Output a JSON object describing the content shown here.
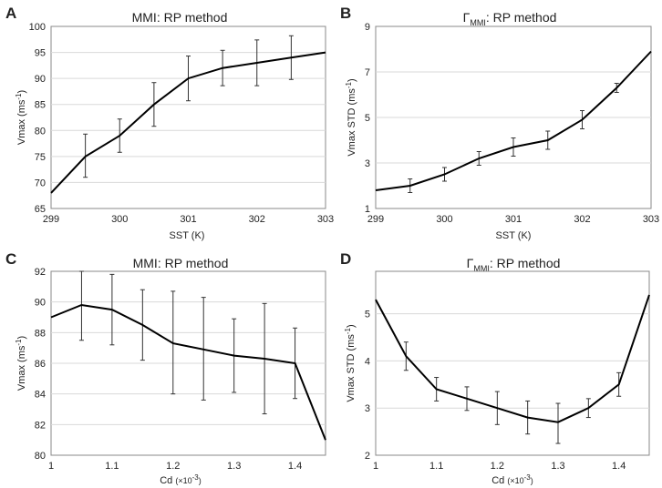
{
  "chart_data": [
    {
      "panel": "A",
      "type": "line",
      "title": "MMI: RP method",
      "xlabel": "SST (K)",
      "ylabel": {
        "main": "Vmax (ms",
        "sup": "-1",
        "end": ")"
      },
      "xlim": [
        299,
        303
      ],
      "ylim": [
        65,
        100
      ],
      "xticks": [
        "299",
        "300",
        "301",
        "302",
        "303"
      ],
      "yticks": [
        "65",
        "70",
        "75",
        "80",
        "85",
        "90",
        "95",
        "100"
      ],
      "x": [
        299,
        299.5,
        300,
        300.5,
        301,
        301.5,
        302,
        302.5,
        303
      ],
      "y": [
        68,
        75,
        79,
        85,
        90,
        92,
        93,
        94,
        95
      ],
      "errors": [
        {
          "x": 299.5,
          "low": 71,
          "high": 79.3
        },
        {
          "x": 300,
          "low": 75.8,
          "high": 82.2
        },
        {
          "x": 300.5,
          "low": 80.8,
          "high": 89.2
        },
        {
          "x": 301,
          "low": 85.7,
          "high": 94.3
        },
        {
          "x": 301.5,
          "low": 88.6,
          "high": 95.4
        },
        {
          "x": 302,
          "low": 88.6,
          "high": 97.4
        },
        {
          "x": 302.5,
          "low": 89.8,
          "high": 98.2
        }
      ]
    },
    {
      "panel": "B",
      "type": "line",
      "title": "Γ",
      "title_sub": "MMI",
      "title_rest": ": RP method",
      "xlabel": "SST (K)",
      "ylabel": {
        "main": "Vmax STD (ms",
        "sup": "-1",
        "end": ")"
      },
      "xlim": [
        299,
        303
      ],
      "ylim": [
        1,
        9
      ],
      "xticks": [
        "299",
        "300",
        "301",
        "302",
        "303"
      ],
      "yticks": [
        "1",
        "3",
        "5",
        "7",
        "9"
      ],
      "x": [
        299,
        299.5,
        300,
        300.5,
        301,
        301.5,
        302,
        302.5,
        303
      ],
      "y": [
        1.8,
        2.0,
        2.5,
        3.2,
        3.7,
        4.0,
        4.9,
        6.3,
        7.9
      ],
      "errors": [
        {
          "x": 299.5,
          "low": 1.7,
          "high": 2.3
        },
        {
          "x": 300,
          "low": 2.2,
          "high": 2.8
        },
        {
          "x": 300.5,
          "low": 2.9,
          "high": 3.5
        },
        {
          "x": 301,
          "low": 3.3,
          "high": 4.1
        },
        {
          "x": 301.5,
          "low": 3.6,
          "high": 4.4
        },
        {
          "x": 302,
          "low": 4.5,
          "high": 5.3
        },
        {
          "x": 302.5,
          "low": 6.1,
          "high": 6.5
        }
      ]
    },
    {
      "panel": "C",
      "type": "line",
      "title": "MMI: RP method",
      "xlabel": {
        "main": "Cd ",
        "paren": "(×10",
        "sup": "-3",
        "end": ")"
      },
      "ylabel": {
        "main": "Vmax (ms",
        "sup": "-1",
        "end": ")"
      },
      "xlim": [
        1.0,
        1.45
      ],
      "ylim": [
        80,
        92
      ],
      "xticks": [
        "1",
        "1.1",
        "1.2",
        "1.3",
        "1.4"
      ],
      "yticks": [
        "80",
        "82",
        "84",
        "86",
        "88",
        "90",
        "92"
      ],
      "x": [
        1.0,
        1.05,
        1.1,
        1.15,
        1.2,
        1.25,
        1.3,
        1.35,
        1.4,
        1.45
      ],
      "y": [
        89.0,
        89.8,
        89.5,
        88.5,
        87.3,
        86.9,
        86.5,
        86.3,
        86.0,
        81.0
      ],
      "errors": [
        {
          "x": 1.05,
          "low": 87.5,
          "high": 92.0
        },
        {
          "x": 1.1,
          "low": 87.2,
          "high": 91.8
        },
        {
          "x": 1.15,
          "low": 86.2,
          "high": 90.8
        },
        {
          "x": 1.2,
          "low": 84.0,
          "high": 90.7
        },
        {
          "x": 1.25,
          "low": 83.6,
          "high": 90.3
        },
        {
          "x": 1.3,
          "low": 84.1,
          "high": 88.9
        },
        {
          "x": 1.35,
          "low": 82.7,
          "high": 89.9
        },
        {
          "x": 1.4,
          "low": 83.7,
          "high": 88.3
        }
      ]
    },
    {
      "panel": "D",
      "type": "line",
      "title": "Γ",
      "title_sub": "MMI",
      "title_rest": ": RP method",
      "xlabel": {
        "main": "Cd ",
        "paren": "(×10",
        "sup": "-3",
        "end": ")"
      },
      "ylabel": {
        "main": "Vmax STD (ms",
        "sup": "-1",
        "end": ")"
      },
      "xlim": [
        1.0,
        1.45
      ],
      "ylim": [
        2,
        5.9
      ],
      "xticks": [
        "1",
        "1.1",
        "1.2",
        "1.3",
        "1.4"
      ],
      "yticks": [
        "2",
        "3",
        "4",
        "5"
      ],
      "x": [
        1.0,
        1.05,
        1.1,
        1.15,
        1.2,
        1.25,
        1.3,
        1.35,
        1.4,
        1.45
      ],
      "y": [
        5.3,
        4.1,
        3.4,
        3.2,
        3.0,
        2.8,
        2.7,
        3.0,
        3.5,
        5.4
      ],
      "errors": [
        {
          "x": 1.05,
          "low": 3.8,
          "high": 4.4
        },
        {
          "x": 1.1,
          "low": 3.15,
          "high": 3.65
        },
        {
          "x": 1.15,
          "low": 2.95,
          "high": 3.45
        },
        {
          "x": 1.2,
          "low": 2.65,
          "high": 3.35
        },
        {
          "x": 1.25,
          "low": 2.45,
          "high": 3.15
        },
        {
          "x": 1.3,
          "low": 2.25,
          "high": 3.1
        },
        {
          "x": 1.35,
          "low": 2.8,
          "high": 3.2
        },
        {
          "x": 1.4,
          "low": 3.25,
          "high": 3.75
        }
      ]
    }
  ]
}
